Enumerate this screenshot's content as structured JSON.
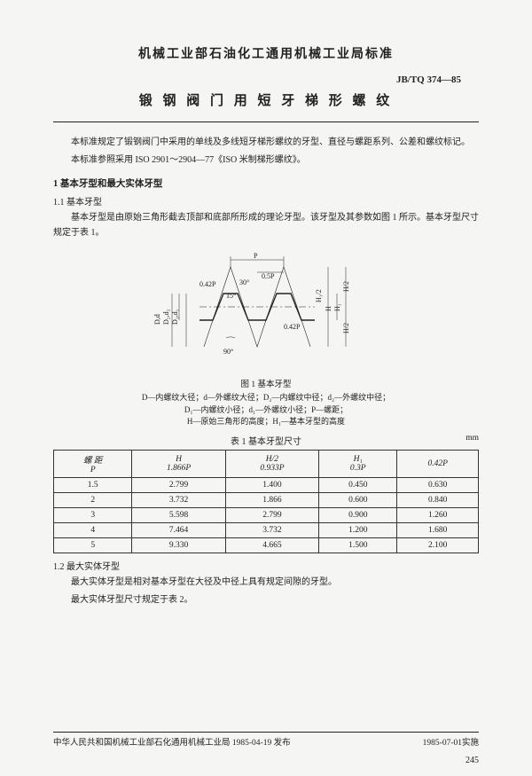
{
  "header": {
    "org_title": "机械工业部石油化工通用机械工业局标准",
    "standard_code": "JB/TQ 374—85",
    "doc_title": "锻 钢 阀 门 用 短 牙 梯 形 螺 纹"
  },
  "intro": {
    "p1": "本标准规定了锻钢阀门中采用的单线及多线短牙梯形螺纹的牙型、直径与螺距系列、公差和螺纹标记。",
    "p2": "本标准参照采用 ISO 2901～2904—77《ISO 米制梯形螺纹》。"
  },
  "section1": {
    "heading": "1 基本牙型和最大实体牙型",
    "sub1_num": "1.1",
    "sub1_title": "基本牙型",
    "sub1_text": "基本牙型是由原始三角形截去顶部和底部所形成的理论牙型。该牙型及其参数如图 1 所示。基本牙型尺寸规定于表 1。"
  },
  "figure": {
    "caption": "图 1  基本牙型",
    "legend1": "D—内螺纹大径；d—外螺纹大径；D₂—内螺纹中径；d₂—外螺纹中径；",
    "legend2": "D₁—内螺纹小径；d₁—外螺纹小径；P—螺距；",
    "legend3": "H—原始三角形的高度；H₁—基本牙型的高度",
    "labels": {
      "P": "P",
      "halfP": "0.5P",
      "p042a": "0.42P",
      "p042b": "0.42P",
      "ang30": "30°",
      "ang15": "15°",
      "ang90": "90°",
      "D1d1": "D₁,d₁",
      "D2d2": "D₂,d₂",
      "Dd": "D,d",
      "H": "H",
      "H1": "H₁",
      "H12a": "H/2",
      "H12b": "H₁/2",
      "H12c": "H/2"
    },
    "style": {
      "line_color": "#222",
      "line_width": 1,
      "thin_width": 0.6,
      "font_size": 8
    }
  },
  "table1": {
    "title": "表 1  基本牙型尺寸",
    "unit": "mm",
    "columns": [
      "螺 距\nP",
      "H\n1.866P",
      "H/2\n0.933P",
      "H₁\n0.3P",
      "0.42P"
    ],
    "rows": [
      [
        "1.5",
        "2.799",
        "1.400",
        "0.450",
        "0.630"
      ],
      [
        "2",
        "3.732",
        "1.866",
        "0.600",
        "0.840"
      ],
      [
        "3",
        "5.598",
        "2.799",
        "0.900",
        "1.260"
      ],
      [
        "4",
        "7.464",
        "3.732",
        "1.200",
        "1.680"
      ],
      [
        "5",
        "9.330",
        "4.665",
        "1.500",
        "2.100"
      ]
    ]
  },
  "section1_2": {
    "num": "1.2",
    "title": "最大实体牙型",
    "p1": "最大实体牙型是相对基本牙型在大径及中径上具有规定间隙的牙型。",
    "p2": "最大实体牙型尺寸规定于表 2。"
  },
  "footer": {
    "issuer": "中华人民共和国机械工业部石化通用机械工业局 1985-04-19 发布",
    "effective": "1985-07-01实施",
    "page": "245"
  }
}
